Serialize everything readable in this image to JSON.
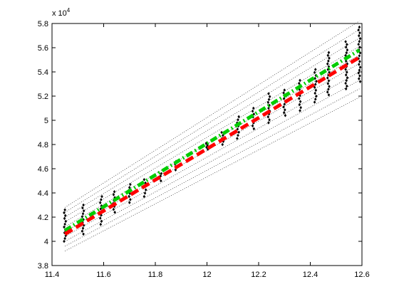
{
  "chart_data": {
    "type": "scatter",
    "title": "",
    "xlabel": "",
    "ylabel": "",
    "xlim": [
      11.4,
      12.6
    ],
    "ylim": [
      38000,
      58000
    ],
    "grid": false,
    "x_ticks": [
      11.4,
      11.6,
      11.8,
      12.0,
      12.2,
      12.4,
      12.6
    ],
    "x_tick_labels": [
      "11.4",
      "11.6",
      "11.8",
      "12",
      "12.2",
      "12.4",
      "12.6"
    ],
    "y_ticks": [
      38000,
      40000,
      42000,
      44000,
      46000,
      48000,
      50000,
      52000,
      54000,
      56000,
      58000
    ],
    "y_tick_labels": [
      "3.8",
      "4",
      "4.2",
      "4.4",
      "4.6",
      "4.8",
      "5",
      "5.2",
      "5.4",
      "5.6",
      "5.8"
    ],
    "y_exponent_label": "x 10",
    "y_exponent_power": "4",
    "point_columns": [
      {
        "x": 11.45,
        "ymin": 40000,
        "ymax": 42600
      },
      {
        "x": 11.52,
        "ymin": 40600,
        "ymax": 43000
      },
      {
        "x": 11.59,
        "ymin": 41400,
        "ymax": 43700
      },
      {
        "x": 11.64,
        "ymin": 42400,
        "ymax": 44100
      },
      {
        "x": 11.7,
        "ymin": 43200,
        "ymax": 44700
      },
      {
        "x": 11.76,
        "ymin": 43700,
        "ymax": 45100
      },
      {
        "x": 11.82,
        "ymin": 45000,
        "ymax": 45600
      },
      {
        "x": 11.88,
        "ymin": 45900,
        "ymax": 46600
      },
      {
        "x": 12.0,
        "ymin": 47600,
        "ymax": 48100
      },
      {
        "x": 12.06,
        "ymin": 48000,
        "ymax": 49000
      },
      {
        "x": 12.12,
        "ymin": 48500,
        "ymax": 50300
      },
      {
        "x": 12.18,
        "ymin": 49300,
        "ymax": 51000
      },
      {
        "x": 12.24,
        "ymin": 49800,
        "ymax": 52200
      },
      {
        "x": 12.3,
        "ymin": 50400,
        "ymax": 52500
      },
      {
        "x": 12.36,
        "ymin": 50800,
        "ymax": 53300
      },
      {
        "x": 12.42,
        "ymin": 51500,
        "ymax": 54200
      },
      {
        "x": 12.47,
        "ymin": 52100,
        "ymax": 55600
      },
      {
        "x": 12.54,
        "ymin": 52600,
        "ymax": 56500
      },
      {
        "x": 12.59,
        "ymin": 53200,
        "ymax": 57700
      }
    ],
    "band": {
      "x": [
        11.45,
        12.59
      ],
      "lower": [
        39200,
        51900
      ],
      "upper": [
        42800,
        58200
      ],
      "lines": 10
    },
    "series": [
      {
        "style": "dash-dot",
        "color": "#00cc00",
        "x": [
          11.45,
          12.59
        ],
        "y": [
          40900,
          55800
        ]
      },
      {
        "style": "dashed",
        "color": "#ff0000",
        "x": [
          11.45,
          12.59
        ],
        "y": [
          40600,
          55200
        ]
      }
    ]
  }
}
